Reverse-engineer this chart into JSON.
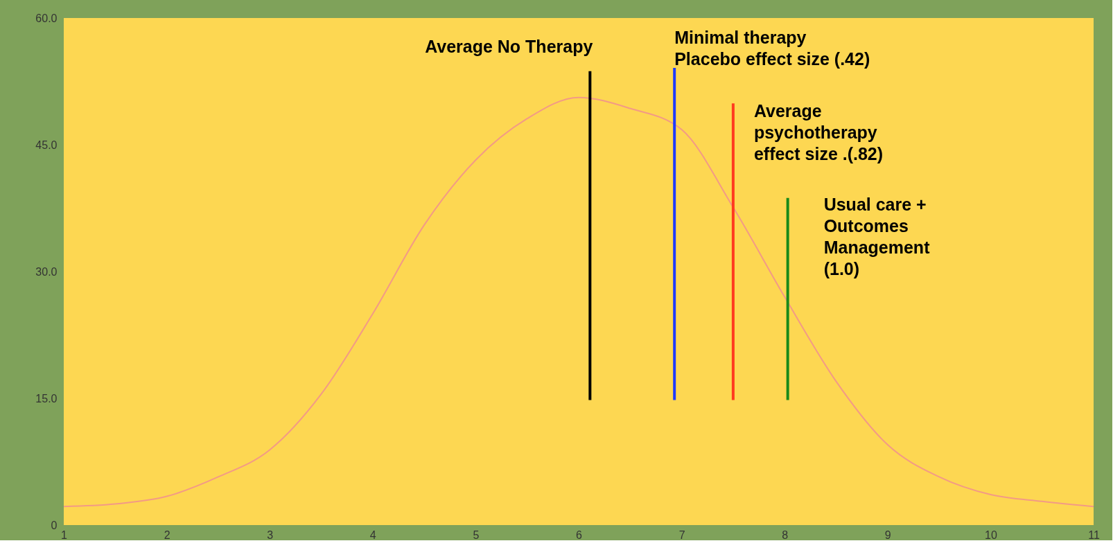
{
  "chart_data": {
    "type": "line",
    "xlim": [
      1,
      11
    ],
    "xticks": [
      1,
      2,
      3,
      4,
      5,
      6,
      7,
      8,
      9,
      10,
      11
    ],
    "ylim": [
      0,
      60
    ],
    "yticks": [
      0,
      {
        "value": 15,
        "label": "15.0"
      },
      {
        "value": 30,
        "label": "30.0"
      },
      {
        "value": 45,
        "label": "45.0"
      },
      {
        "value": 60,
        "label": "60.0"
      }
    ],
    "grid": false,
    "marker": "none",
    "line_style": "solid",
    "series": [
      {
        "color": "#f39a86",
        "x": [
          1,
          1.5,
          2,
          2.5,
          3,
          3.5,
          4,
          4.5,
          5,
          5.5,
          6,
          6.5,
          7,
          7.5,
          8,
          8.5,
          9,
          9.5,
          10,
          10.5,
          11
        ],
        "values": [
          2.2,
          2.5,
          3.4,
          5.7,
          8.9,
          15.5,
          25,
          35.5,
          43.2,
          48.1,
          50.6,
          49.3,
          46.8,
          37.6,
          27,
          17,
          9.5,
          5.7,
          3.6,
          2.8,
          2.2
        ]
      },
      {
        "color": "#000000",
        "x": [
          6.11,
          6.11
        ],
        "values": [
          14.8,
          53.7
        ]
      },
      {
        "color": "#1f3cff",
        "x": [
          6.93,
          6.93
        ],
        "values": [
          14.8,
          54.1
        ]
      },
      {
        "color": "#ff3b1f",
        "x": [
          7.5,
          7.5
        ],
        "values": [
          14.8,
          49.9
        ]
      },
      {
        "color": "#1a8a1a",
        "x": [
          8.03,
          8.03
        ],
        "values": [
          14.8,
          38.7
        ]
      }
    ],
    "annotations": [
      {
        "text": "Average No Therapy",
        "x": 6.11,
        "y": 53.7
      },
      {
        "text": "Minimal therapy\nPlacebo effect size (.42)",
        "x": 6.93,
        "y": 54.1
      },
      {
        "text": "Average\npsychotherapy\neffect size .(.82)",
        "x": 7.5,
        "y": 49.9
      },
      {
        "text": "Usual care +\nOutcomes\nManagement\n(1.0)",
        "x": 8.03,
        "y": 38.7
      }
    ]
  }
}
